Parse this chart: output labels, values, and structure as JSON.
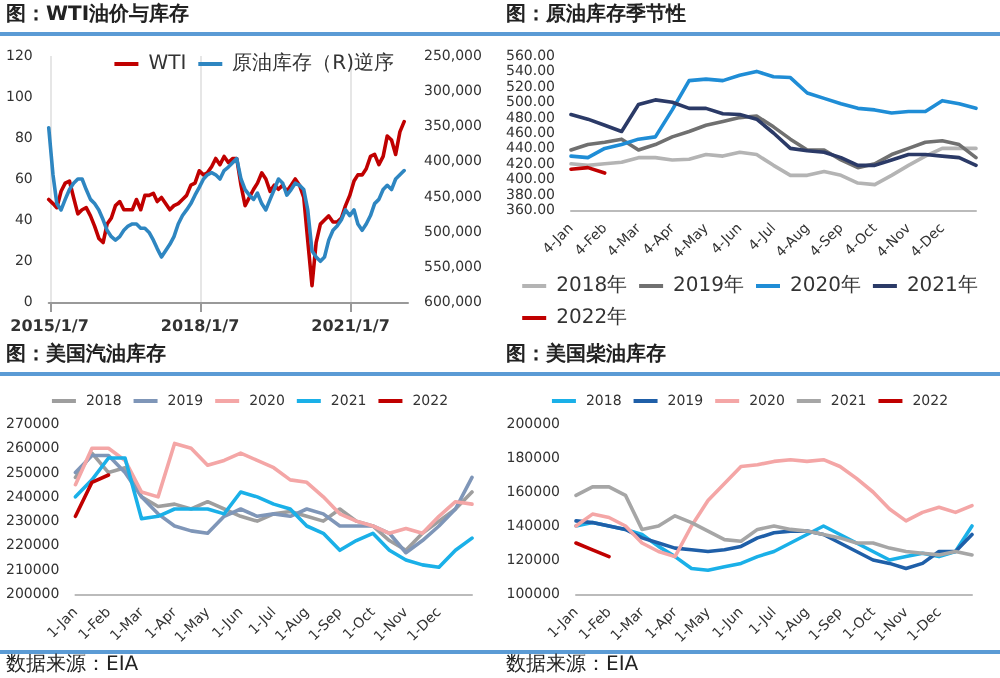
{
  "chart_data": [
    {
      "type": "line",
      "title": "图：WTI油价与库存",
      "x": [
        "2015-01",
        "2015-02",
        "2015-03",
        "2015-04",
        "2015-05",
        "2015-06",
        "2015-07",
        "2015-08",
        "2015-09",
        "2015-10",
        "2015-11",
        "2015-12",
        "2016-01",
        "2016-02",
        "2016-03",
        "2016-04",
        "2016-05",
        "2016-06",
        "2016-07",
        "2016-08",
        "2016-09",
        "2016-10",
        "2016-11",
        "2016-12",
        "2017-01",
        "2017-02",
        "2017-03",
        "2017-04",
        "2017-05",
        "2017-06",
        "2017-07",
        "2017-08",
        "2017-09",
        "2017-10",
        "2017-11",
        "2017-12",
        "2018-01",
        "2018-02",
        "2018-03",
        "2018-04",
        "2018-05",
        "2018-06",
        "2018-07",
        "2018-08",
        "2018-09",
        "2018-10",
        "2018-11",
        "2018-12",
        "2019-01",
        "2019-02",
        "2019-03",
        "2019-04",
        "2019-05",
        "2019-06",
        "2019-07",
        "2019-08",
        "2019-09",
        "2019-10",
        "2019-11",
        "2019-12",
        "2020-01",
        "2020-02",
        "2020-03",
        "2020-04",
        "2020-05",
        "2020-06",
        "2020-07",
        "2020-08",
        "2020-09",
        "2020-10",
        "2020-11",
        "2020-12",
        "2021-01",
        "2021-02",
        "2021-03",
        "2021-04",
        "2021-05",
        "2021-06",
        "2021-07",
        "2021-08",
        "2021-09",
        "2021-10",
        "2021-11",
        "2021-12",
        "2022-01",
        "2022-02"
      ],
      "series": [
        {
          "name": "WTI",
          "color": "#c00000",
          "values": [
            50,
            48,
            46,
            54,
            58,
            59,
            51,
            43,
            45,
            46,
            42,
            37,
            31,
            29,
            38,
            41,
            47,
            49,
            45,
            45,
            45,
            50,
            45,
            52,
            52,
            53,
            49,
            51,
            48,
            45,
            47,
            48,
            50,
            52,
            57,
            58,
            64,
            62,
            63,
            66,
            70,
            67,
            71,
            68,
            70,
            70,
            57,
            47,
            51,
            55,
            58,
            63,
            60,
            54,
            57,
            55,
            57,
            54,
            57,
            60,
            57,
            51,
            30,
            8,
            29,
            38,
            40,
            42,
            39,
            39,
            41,
            47,
            52,
            59,
            62,
            62,
            65,
            71,
            72,
            67,
            71,
            81,
            79,
            72,
            83,
            88
          ]
        },
        {
          "name": "原油库存（R)逆序",
          "color": "#2e86c1",
          "axis": "y2",
          "values": [
            352000,
            419000,
            460000,
            469000,
            454000,
            440000,
            431000,
            425000,
            425000,
            440000,
            454000,
            460000,
            469000,
            483000,
            498000,
            507000,
            512000,
            507000,
            498000,
            492000,
            489000,
            489000,
            495000,
            495000,
            501000,
            512000,
            524000,
            536000,
            527000,
            518000,
            507000,
            489000,
            477000,
            469000,
            460000,
            448000,
            437000,
            425000,
            419000,
            416000,
            419000,
            425000,
            413000,
            408000,
            402000,
            396000,
            425000,
            440000,
            448000,
            454000,
            445000,
            460000,
            469000,
            454000,
            440000,
            425000,
            431000,
            448000,
            440000,
            431000,
            434000,
            440000,
            469000,
            527000,
            536000,
            542000,
            536000,
            512000,
            498000,
            492000,
            483000,
            469000,
            477000,
            469000,
            489000,
            498000,
            489000,
            477000,
            460000,
            454000,
            440000,
            434000,
            440000,
            425000,
            419000,
            413000
          ]
        }
      ],
      "xlim": [
        "2015-01-01",
        "2022-03-01"
      ],
      "xticks": [
        {
          "value": "2015-01-07",
          "label": "2015/1/7"
        },
        {
          "value": "2018-01-07",
          "label": "2018/1/7"
        },
        {
          "value": "2021-01-07",
          "label": "2021/1/7"
        }
      ],
      "ylim": [
        0,
        120
      ],
      "yticks": [
        0,
        20,
        40,
        60,
        80,
        100,
        120
      ],
      "y2lim": [
        600000,
        250000
      ],
      "y2ticks": [
        {
          "value": 250000,
          "label": "250,000"
        },
        {
          "value": 300000,
          "label": "300,000"
        },
        {
          "value": 350000,
          "label": "350,000"
        },
        {
          "value": 400000,
          "label": "400,000"
        },
        {
          "value": 450000,
          "label": "450,000"
        },
        {
          "value": 500000,
          "label": "500,000"
        },
        {
          "value": 550000,
          "label": "550,000"
        },
        {
          "value": 600000,
          "label": "600,000"
        }
      ],
      "grid": "x",
      "legend": "top right",
      "marker": "none",
      "line_style": "solid"
    },
    {
      "type": "line",
      "title": "图：原油库存季节性",
      "categories": [
        "4-Jan",
        null,
        "4-Feb",
        null,
        "4-Mar",
        null,
        "4-Apr",
        null,
        "4-May",
        null,
        "4-Jun",
        null,
        "4-Jul",
        null,
        "4-Aug",
        null,
        "4-Sep",
        null,
        "4-Oct",
        null,
        "4-Nov",
        null,
        "4-Dec",
        null,
        null
      ],
      "series": [
        {
          "name": "2018年",
          "color": "#b4b4b4",
          "values": [
            420,
            418,
            420,
            422,
            428,
            428,
            425,
            426,
            432,
            430,
            435,
            432,
            418,
            405,
            405,
            410,
            405,
            395,
            393,
            405,
            418,
            430,
            440,
            440,
            440
          ]
        },
        {
          "name": "2019年",
          "color": "#707070",
          "values": [
            438,
            445,
            448,
            452,
            438,
            445,
            455,
            462,
            470,
            475,
            480,
            482,
            468,
            452,
            438,
            438,
            425,
            415,
            420,
            432,
            440,
            448,
            450,
            445,
            428
          ]
        },
        {
          "name": "2020年",
          "color": "#1f8dd6",
          "values": [
            430,
            428,
            440,
            445,
            452,
            455,
            490,
            528,
            530,
            528,
            535,
            540,
            533,
            532,
            512,
            505,
            498,
            492,
            490,
            486,
            488,
            488,
            502,
            498,
            492
          ]
        },
        {
          "name": "2021年",
          "color": "#2b3a67",
          "values": [
            484,
            478,
            470,
            462,
            497,
            503,
            500,
            492,
            492,
            485,
            484,
            478,
            460,
            440,
            437,
            435,
            428,
            418,
            418,
            425,
            432,
            432,
            430,
            428,
            418
          ]
        },
        {
          "name": "2022年",
          "color": "#c00000",
          "values": [
            413,
            415,
            408,
            null,
            null,
            null,
            null,
            null,
            null,
            null,
            null,
            null,
            null,
            null,
            null,
            null,
            null,
            null,
            null,
            null,
            null,
            null,
            null,
            null,
            null
          ]
        }
      ],
      "ylim": [
        360,
        560
      ],
      "yticks": [
        {
          "value": 360,
          "label": "360.00"
        },
        {
          "value": 380,
          "label": "380.00"
        },
        {
          "value": 400,
          "label": "400.00"
        },
        {
          "value": 420,
          "label": "420.00"
        },
        {
          "value": 440,
          "label": "440.00"
        },
        {
          "value": 460,
          "label": "460.00"
        },
        {
          "value": 480,
          "label": "480.00"
        },
        {
          "value": 500,
          "label": "500.00"
        },
        {
          "value": 520,
          "label": "520.00"
        },
        {
          "value": 540,
          "label": "540.00"
        },
        {
          "value": 560,
          "label": "560.00"
        }
      ],
      "grid": false,
      "legend": "bottom",
      "marker": "none",
      "line_style": "solid"
    },
    {
      "type": "line",
      "title": "图：美国汽油库存",
      "categories": [
        "1-Jan",
        null,
        "1-Feb",
        null,
        "1-Mar",
        null,
        "1-Apr",
        null,
        "1-May",
        null,
        "1-Jun",
        null,
        "1-Jul",
        null,
        "1-Aug",
        null,
        "1-Sep",
        null,
        "1-Oct",
        null,
        "1-Nov",
        null,
        "1-Dec",
        null,
        null
      ],
      "series": [
        {
          "name": "2018",
          "color": "#9e9e9e",
          "values": [
            248000,
            258000,
            250000,
            252000,
            240000,
            236000,
            237000,
            235000,
            238000,
            235000,
            232000,
            230000,
            233000,
            234000,
            232000,
            230000,
            235000,
            230000,
            228000,
            222000,
            218000,
            225000,
            230000,
            235000,
            242000
          ]
        },
        {
          "name": "2019",
          "color": "#7f96b8",
          "values": [
            250000,
            257000,
            257000,
            250000,
            240000,
            233000,
            228000,
            226000,
            225000,
            232000,
            235000,
            232000,
            233000,
            232000,
            235000,
            233000,
            228000,
            228000,
            228000,
            225000,
            217000,
            222000,
            228000,
            235000,
            248000
          ]
        },
        {
          "name": "2020",
          "color": "#f4a6a6",
          "values": [
            245000,
            260000,
            260000,
            255000,
            242000,
            240000,
            262000,
            260000,
            253000,
            255000,
            258000,
            255000,
            252000,
            247000,
            246000,
            240000,
            233000,
            230000,
            228000,
            225000,
            227000,
            225000,
            232000,
            238000,
            237000
          ]
        },
        {
          "name": "2021",
          "color": "#1ab0e8",
          "values": [
            240000,
            247000,
            256000,
            256000,
            231000,
            232000,
            235000,
            235000,
            235000,
            233000,
            242000,
            240000,
            237000,
            235000,
            228000,
            225000,
            218000,
            222000,
            225000,
            218000,
            214000,
            212000,
            211000,
            218000,
            223000
          ]
        },
        {
          "name": "2022",
          "color": "#c00000",
          "values": [
            232000,
            246000,
            249000,
            null,
            null,
            null,
            null,
            null,
            null,
            null,
            null,
            null,
            null,
            null,
            null,
            null,
            null,
            null,
            null,
            null,
            null,
            null,
            null,
            null,
            null
          ]
        }
      ],
      "ylim": [
        200000,
        270000
      ],
      "yticks": [
        200000,
        210000,
        220000,
        230000,
        240000,
        250000,
        260000,
        270000
      ],
      "grid": false,
      "legend": "top",
      "marker": "none",
      "line_style": "solid",
      "annotations": [
        "数据来源：EIA"
      ]
    },
    {
      "type": "line",
      "title": "图：美国柴油库存",
      "categories": [
        "1-Jan",
        null,
        "1-Feb",
        null,
        "1-Mar",
        null,
        "1-Apr",
        null,
        "1-May",
        null,
        "1-Jun",
        null,
        "1-Jul",
        null,
        "1-Aug",
        null,
        "1-Sep",
        null,
        "1-Oct",
        null,
        "1-Nov",
        null,
        "1-Dec",
        null,
        null
      ],
      "series": [
        {
          "name": "2018",
          "color": "#1ab0e8",
          "values": [
            140000,
            142000,
            140000,
            138000,
            135000,
            128000,
            122000,
            115000,
            114000,
            116000,
            118000,
            122000,
            125000,
            130000,
            135000,
            140000,
            135000,
            130000,
            125000,
            120000,
            122000,
            124000,
            122000,
            125000,
            140000
          ]
        },
        {
          "name": "2019",
          "color": "#1f5fa8",
          "values": [
            143000,
            142000,
            140000,
            138000,
            133000,
            130000,
            127000,
            126000,
            125000,
            126000,
            128000,
            133000,
            136000,
            137000,
            137000,
            135000,
            130000,
            125000,
            120000,
            118000,
            115000,
            118000,
            125000,
            125000,
            135000
          ]
        },
        {
          "name": "2020",
          "color": "#f4a6a6",
          "values": [
            140000,
            147000,
            145000,
            140000,
            130000,
            125000,
            122000,
            140000,
            155000,
            165000,
            175000,
            176000,
            178000,
            179000,
            178000,
            179000,
            175000,
            168000,
            160000,
            150000,
            143000,
            148000,
            151000,
            148000,
            152000
          ]
        },
        {
          "name": "2021",
          "color": "#a6a6a6",
          "values": [
            158000,
            163000,
            163000,
            158000,
            138000,
            140000,
            146000,
            142000,
            137000,
            132000,
            131000,
            138000,
            140000,
            138000,
            137000,
            135000,
            133000,
            130000,
            130000,
            127000,
            125000,
            124000,
            123000,
            125000,
            123000
          ]
        },
        {
          "name": "2022",
          "color": "#c00000",
          "values": [
            130000,
            126000,
            122000,
            null,
            null,
            null,
            null,
            null,
            null,
            null,
            null,
            null,
            null,
            null,
            null,
            null,
            null,
            null,
            null,
            null,
            null,
            null,
            null,
            null,
            null
          ]
        }
      ],
      "ylim": [
        100000,
        200000
      ],
      "yticks": [
        100000,
        120000,
        140000,
        160000,
        180000,
        200000
      ],
      "grid": false,
      "legend": "top",
      "marker": "none",
      "line_style": "solid",
      "annotations": [
        "数据来源：EIA"
      ]
    }
  ]
}
